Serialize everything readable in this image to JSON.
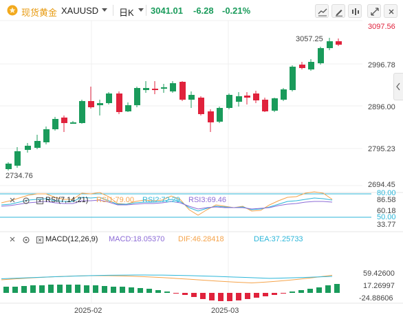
{
  "header": {
    "symbol_name": "现货黄金",
    "symbol_code": "XAUUSD",
    "period": "日K",
    "last_price": "3041.01",
    "change": "-6.28",
    "change_pct": "-0.21%"
  },
  "price_axis": {
    "labels": [
      "3097.56",
      "2996.78",
      "2896.00",
      "2795.23",
      "2694.45"
    ],
    "high_marker": "3057.25",
    "low_marker": "2734.76"
  },
  "rsi": {
    "title": "RSI(7,14,21)",
    "rsi1": "RSI1:79.00",
    "rsi2": "RSI2:72.29",
    "rsi3": "RSI3:69.46",
    "axis_labels": [
      "80.00",
      "86.58",
      "60.18",
      "50.00",
      "33.77"
    ]
  },
  "macd": {
    "title": "MACD(12,26,9)",
    "macd": "MACD:18.05370",
    "dif": "DIF:46.28418",
    "dea": "DEA:37.25733",
    "axis_labels": [
      "59.42600",
      "17.26997",
      "-24.88606"
    ]
  },
  "time_axis": [
    "2025-02",
    "2025-03"
  ],
  "colors": {
    "up": "#1a9b5b",
    "down": "#e0223c",
    "accent": "#e79a10",
    "rsi1": "#f5a34a",
    "rsi2": "#2bb6d9",
    "rsi3": "#8c6bd6"
  },
  "icons": [
    "gold-coin-icon",
    "chart-type-icon",
    "draw-icon",
    "indicator-icon",
    "fullscreen-icon",
    "collapse-icon",
    "visibility-icon",
    "settings-icon",
    "close-icon"
  ]
}
